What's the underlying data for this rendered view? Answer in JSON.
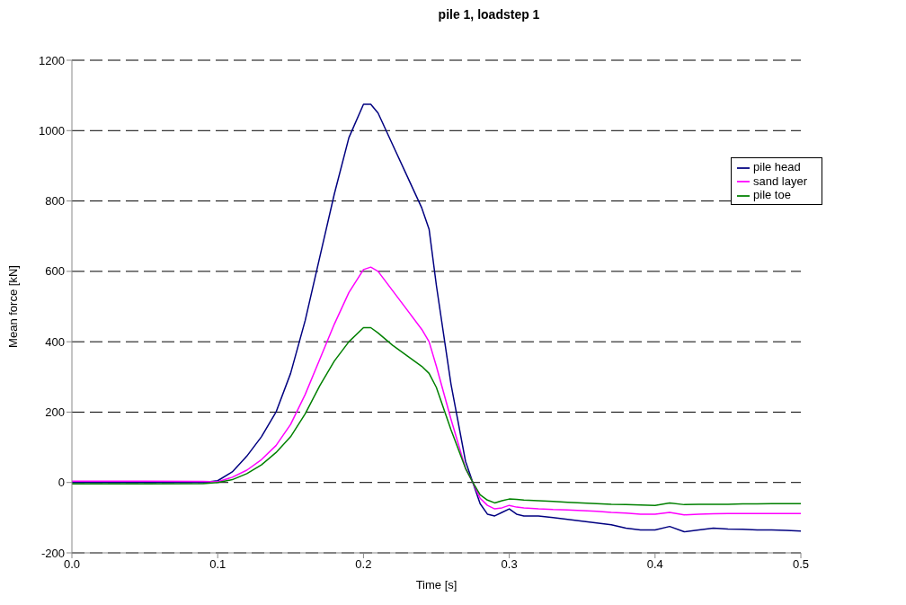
{
  "chart_data": {
    "type": "line",
    "title": "pile 1, loadstep 1",
    "xlabel": "Time [s]",
    "ylabel": "Mean force [kN]",
    "x": [
      0,
      0.05,
      0.09,
      0.1,
      0.11,
      0.12,
      0.13,
      0.14,
      0.15,
      0.16,
      0.17,
      0.18,
      0.19,
      0.2,
      0.205,
      0.21,
      0.22,
      0.23,
      0.24,
      0.245,
      0.25,
      0.26,
      0.27,
      0.275,
      0.28,
      0.285,
      0.29,
      0.295,
      0.3,
      0.305,
      0.31,
      0.32,
      0.33,
      0.34,
      0.35,
      0.36,
      0.37,
      0.38,
      0.39,
      0.4,
      0.41,
      0.42,
      0.43,
      0.44,
      0.45,
      0.46,
      0.47,
      0.48,
      0.49,
      0.5
    ],
    "series": [
      {
        "name": "pile head",
        "color": "#000080",
        "values": [
          0,
          0,
          0,
          5,
          30,
          75,
          130,
          200,
          310,
          460,
          640,
          820,
          980,
          1075,
          1075,
          1050,
          960,
          870,
          780,
          720,
          560,
          280,
          60,
          0,
          -60,
          -90,
          -95,
          -85,
          -75,
          -90,
          -95,
          -95,
          -100,
          -105,
          -110,
          -115,
          -120,
          -130,
          -135,
          -135,
          -125,
          -140,
          -135,
          -130,
          -132,
          -133,
          -135,
          -135,
          -136,
          -138
        ]
      },
      {
        "name": "sand layer",
        "color": "#ff00ff",
        "values": [
          4,
          4,
          3,
          2,
          15,
          35,
          65,
          105,
          165,
          250,
          350,
          450,
          540,
          605,
          612,
          600,
          545,
          490,
          435,
          400,
          330,
          180,
          40,
          0,
          -45,
          -65,
          -75,
          -72,
          -65,
          -70,
          -72,
          -75,
          -77,
          -78,
          -80,
          -82,
          -85,
          -87,
          -90,
          -90,
          -85,
          -92,
          -90,
          -89,
          -88,
          -88,
          -88,
          -88,
          -88,
          -88
        ]
      },
      {
        "name": "pile toe",
        "color": "#008000",
        "values": [
          -4,
          -4,
          -3,
          0,
          8,
          25,
          50,
          85,
          130,
          195,
          275,
          345,
          400,
          440,
          440,
          425,
          390,
          360,
          330,
          310,
          270,
          150,
          40,
          0,
          -35,
          -50,
          -58,
          -52,
          -47,
          -48,
          -50,
          -52,
          -54,
          -56,
          -58,
          -60,
          -62,
          -63,
          -64,
          -65,
          -58,
          -63,
          -62,
          -62,
          -62,
          -61,
          -61,
          -60,
          -60,
          -60
        ]
      }
    ],
    "xlim": [
      0,
      0.5
    ],
    "xticks": [
      {
        "value": 0,
        "label": "0.0"
      },
      0.1,
      0.2,
      0.3,
      0.4,
      0.5
    ],
    "ylim": [
      -200,
      1200
    ],
    "yticks": [
      -200,
      0,
      200,
      400,
      600,
      800,
      1000,
      1200
    ],
    "grid": "y",
    "legend": "top right",
    "marker": "none",
    "line_style": "solid"
  }
}
